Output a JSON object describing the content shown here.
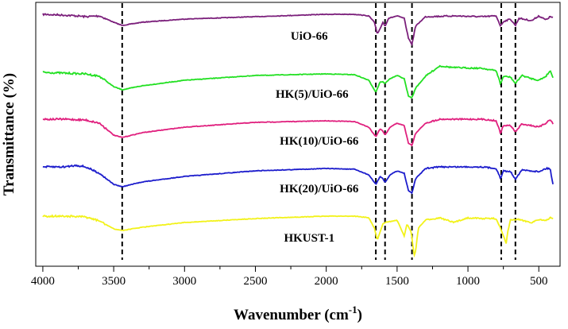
{
  "chart_data": {
    "type": "line",
    "title": "",
    "xlabel": "Wavenumber (cm",
    "xlabel_superscript": "-1",
    "xlabel_close": ")",
    "ylabel": "Transmittance (%)",
    "xlim": [
      4050,
      350
    ],
    "x_reversed": true,
    "y_ticks_shown": false,
    "grid": false,
    "x_ticks": [
      4000,
      3500,
      3000,
      2500,
      2000,
      1500,
      1000,
      500
    ],
    "x_tick_labels": [
      "4000",
      "3500",
      "3000",
      "2500",
      "2000",
      "1500",
      "1000",
      "500"
    ],
    "reference_lines_x": [
      3440,
      1650,
      1585,
      1395,
      765,
      665
    ],
    "series": [
      {
        "name": "UiO-66",
        "color": "#7b1f7b",
        "label_x": 2120,
        "points": [
          [
            4000,
            0.0
          ],
          [
            3850,
            0.01
          ],
          [
            3760,
            0.02
          ],
          [
            3700,
            0.03
          ],
          [
            3600,
            0.02
          ],
          [
            3500,
            0.1
          ],
          [
            3440,
            0.14
          ],
          [
            3300,
            0.1
          ],
          [
            3000,
            0.06
          ],
          [
            2500,
            0.03
          ],
          [
            2000,
            0.0
          ],
          [
            1800,
            0.0
          ],
          [
            1700,
            0.02
          ],
          [
            1660,
            0.1
          ],
          [
            1640,
            0.25
          ],
          [
            1620,
            0.18
          ],
          [
            1600,
            0.1
          ],
          [
            1585,
            0.15
          ],
          [
            1560,
            0.05
          ],
          [
            1500,
            0.02
          ],
          [
            1450,
            0.05
          ],
          [
            1420,
            0.3
          ],
          [
            1395,
            0.38
          ],
          [
            1370,
            0.15
          ],
          [
            1300,
            0.03
          ],
          [
            1100,
            0.02
          ],
          [
            900,
            0.03
          ],
          [
            800,
            0.02
          ],
          [
            770,
            0.15
          ],
          [
            750,
            0.09
          ],
          [
            700,
            0.06
          ],
          [
            665,
            0.14
          ],
          [
            640,
            0.05
          ],
          [
            550,
            0.08
          ],
          [
            500,
            0.02
          ],
          [
            450,
            0.07
          ],
          [
            420,
            0.03
          ],
          [
            400,
            0.04
          ]
        ]
      },
      {
        "name": "HK(5)/UiO-66",
        "color": "#22e022",
        "label_x": 2100,
        "points": [
          [
            4000,
            0.0
          ],
          [
            3850,
            0.01
          ],
          [
            3700,
            0.02
          ],
          [
            3600,
            0.05
          ],
          [
            3500,
            0.18
          ],
          [
            3440,
            0.22
          ],
          [
            3300,
            0.17
          ],
          [
            3000,
            0.1
          ],
          [
            2500,
            0.04
          ],
          [
            2000,
            0.02
          ],
          [
            1800,
            0.03
          ],
          [
            1700,
            0.1
          ],
          [
            1650,
            0.25
          ],
          [
            1620,
            0.12
          ],
          [
            1600,
            0.12
          ],
          [
            1585,
            0.14
          ],
          [
            1550,
            0.08
          ],
          [
            1500,
            0.04
          ],
          [
            1450,
            0.08
          ],
          [
            1420,
            0.3
          ],
          [
            1395,
            0.32
          ],
          [
            1370,
            0.2
          ],
          [
            1300,
            0.05
          ],
          [
            1200,
            -0.08
          ],
          [
            1100,
            -0.06
          ],
          [
            900,
            -0.05
          ],
          [
            800,
            -0.02
          ],
          [
            770,
            0.15
          ],
          [
            750,
            0.05
          ],
          [
            700,
            0.06
          ],
          [
            665,
            0.14
          ],
          [
            620,
            0.04
          ],
          [
            550,
            0.08
          ],
          [
            500,
            0.1
          ],
          [
            450,
            0.05
          ],
          [
            420,
            -0.02
          ],
          [
            400,
            0.06
          ]
        ]
      },
      {
        "name": "HK(10)/UiO-66",
        "color": "#e0207e",
        "label_x": 2050,
        "points": [
          [
            4000,
            0.0
          ],
          [
            3850,
            0.0
          ],
          [
            3700,
            0.01
          ],
          [
            3600,
            0.05
          ],
          [
            3500,
            0.2
          ],
          [
            3440,
            0.23
          ],
          [
            3300,
            0.17
          ],
          [
            3000,
            0.1
          ],
          [
            2500,
            0.04
          ],
          [
            2000,
            0.02
          ],
          [
            1800,
            0.03
          ],
          [
            1700,
            0.1
          ],
          [
            1650,
            0.22
          ],
          [
            1620,
            0.12
          ],
          [
            1600,
            0.15
          ],
          [
            1585,
            0.2
          ],
          [
            1550,
            0.1
          ],
          [
            1500,
            0.05
          ],
          [
            1450,
            0.08
          ],
          [
            1420,
            0.3
          ],
          [
            1395,
            0.33
          ],
          [
            1370,
            0.18
          ],
          [
            1300,
            0.05
          ],
          [
            1200,
            0.0
          ],
          [
            1100,
            0.0
          ],
          [
            900,
            0.0
          ],
          [
            800,
            0.02
          ],
          [
            770,
            0.18
          ],
          [
            750,
            0.08
          ],
          [
            700,
            0.08
          ],
          [
            665,
            0.16
          ],
          [
            620,
            0.06
          ],
          [
            550,
            0.08
          ],
          [
            500,
            0.1
          ],
          [
            450,
            0.05
          ],
          [
            420,
            0.0
          ],
          [
            400,
            0.06
          ]
        ]
      },
      {
        "name": "HK(20)/UiO-66",
        "color": "#1c1ccc",
        "label_x": 2050,
        "points": [
          [
            4000,
            0.0
          ],
          [
            3850,
            0.0
          ],
          [
            3760,
            -0.02
          ],
          [
            3700,
            0.0
          ],
          [
            3600,
            0.08
          ],
          [
            3500,
            0.22
          ],
          [
            3440,
            0.25
          ],
          [
            3300,
            0.19
          ],
          [
            3000,
            0.12
          ],
          [
            2500,
            0.05
          ],
          [
            2000,
            0.02
          ],
          [
            1800,
            0.03
          ],
          [
            1700,
            0.1
          ],
          [
            1650,
            0.22
          ],
          [
            1620,
            0.12
          ],
          [
            1600,
            0.15
          ],
          [
            1585,
            0.2
          ],
          [
            1550,
            0.1
          ],
          [
            1500,
            0.05
          ],
          [
            1450,
            0.08
          ],
          [
            1420,
            0.3
          ],
          [
            1395,
            0.33
          ],
          [
            1370,
            0.15
          ],
          [
            1300,
            0.02
          ],
          [
            1200,
            0.0
          ],
          [
            1100,
            0.0
          ],
          [
            900,
            0.0
          ],
          [
            800,
            0.02
          ],
          [
            770,
            0.15
          ],
          [
            750,
            0.05
          ],
          [
            700,
            0.06
          ],
          [
            665,
            0.15
          ],
          [
            620,
            0.04
          ],
          [
            550,
            0.05
          ],
          [
            500,
            0.06
          ],
          [
            450,
            0.02
          ],
          [
            420,
            0.02
          ],
          [
            400,
            0.22
          ]
        ]
      },
      {
        "name": "HKUST-1",
        "color": "#f2f21a",
        "label_x": 2120,
        "points": [
          [
            4000,
            0.0
          ],
          [
            3850,
            0.0
          ],
          [
            3700,
            0.01
          ],
          [
            3600,
            0.06
          ],
          [
            3500,
            0.16
          ],
          [
            3440,
            0.18
          ],
          [
            3300,
            0.14
          ],
          [
            3000,
            0.08
          ],
          [
            2500,
            0.03
          ],
          [
            2000,
            0.0
          ],
          [
            1800,
            0.0
          ],
          [
            1700,
            0.02
          ],
          [
            1660,
            0.15
          ],
          [
            1640,
            0.3
          ],
          [
            1620,
            0.2
          ],
          [
            1600,
            0.1
          ],
          [
            1585,
            0.08
          ],
          [
            1500,
            0.05
          ],
          [
            1450,
            0.25
          ],
          [
            1430,
            0.1
          ],
          [
            1400,
            0.2
          ],
          [
            1380,
            0.5
          ],
          [
            1370,
            0.45
          ],
          [
            1350,
            0.15
          ],
          [
            1300,
            0.05
          ],
          [
            1200,
            0.02
          ],
          [
            1100,
            0.08
          ],
          [
            1000,
            0.02
          ],
          [
            900,
            0.03
          ],
          [
            800,
            0.03
          ],
          [
            760,
            0.2
          ],
          [
            730,
            0.35
          ],
          [
            720,
            0.2
          ],
          [
            700,
            0.05
          ],
          [
            650,
            0.04
          ],
          [
            550,
            0.08
          ],
          [
            500,
            0.04
          ],
          [
            450,
            0.06
          ],
          [
            420,
            0.02
          ],
          [
            400,
            0.03
          ]
        ]
      }
    ]
  }
}
